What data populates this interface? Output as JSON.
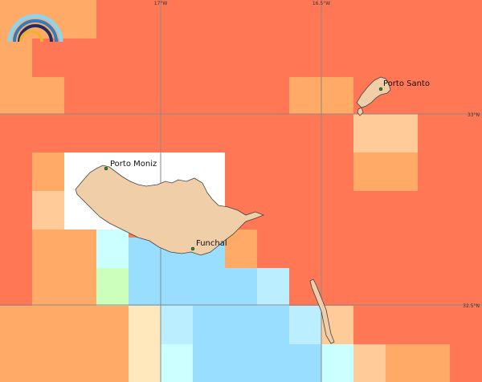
{
  "map": {
    "coord_labels": {
      "lon_17w": "17°W",
      "lon_16_5w": "16.5°W",
      "lat_33n": "33°N",
      "lat_32_5n": "32.5°N"
    },
    "places": {
      "porto_moniz": "Porto Moniz",
      "porto_santo": "Porto Santo",
      "funchal": "Funchal"
    },
    "colors": {
      "sea_grid_red": "#ff7755",
      "orange": "#ffaa66",
      "light_orange": "#ffcc99",
      "pale_yellow": "#ffe8bb",
      "light_blue": "#99ddff",
      "pale_blue": "#bbeeff",
      "pale_cyan": "#ccffff",
      "pale_green": "#ccffbb",
      "land": "#f0cfa8",
      "land_outline": "#444444",
      "city_dot": "#2f8f2f"
    },
    "logo_icon": "rainbow-arcs-logo"
  }
}
